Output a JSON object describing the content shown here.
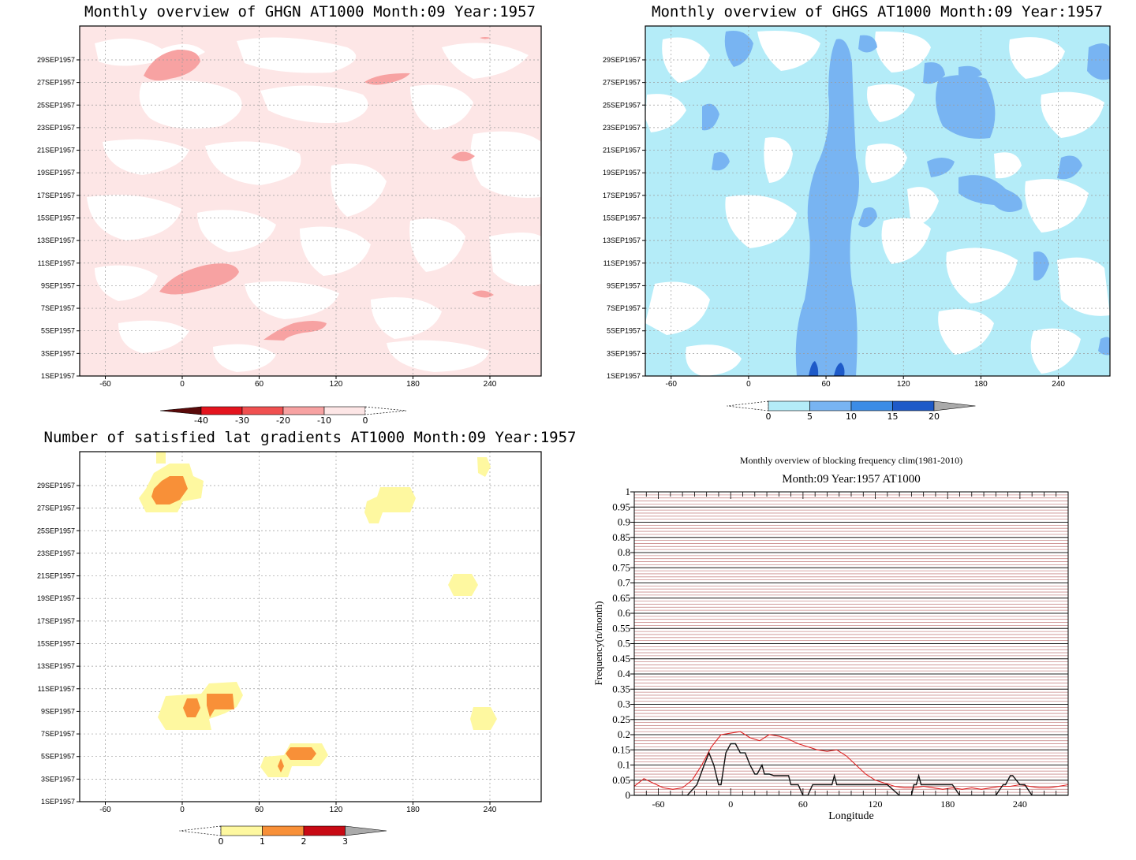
{
  "chart_data": [
    {
      "type": "heatmap",
      "title": "Monthly overview of GHGN AT1000 Month:09 Year:1957",
      "x_ticks": [
        -60,
        0,
        60,
        120,
        180,
        240
      ],
      "xlim": [
        -80,
        280
      ],
      "y_ticks": [
        "1SEP1957",
        "3SEP1957",
        "5SEP1957",
        "7SEP1957",
        "9SEP1957",
        "11SEP1957",
        "13SEP1957",
        "15SEP1957",
        "17SEP1957",
        "19SEP1957",
        "21SEP1957",
        "23SEP1957",
        "25SEP1957",
        "27SEP1957",
        "29SEP1957"
      ],
      "colorbar": {
        "ticks": [
          -40,
          -30,
          -20,
          -10,
          0
        ],
        "colors": [
          "#5a0a0a",
          "#e4141e",
          "#f05050",
          "#f7a2a2",
          "#fde6e6"
        ],
        "over_color": "#ffffff"
      },
      "background_color": "#fde6e6",
      "grid": true
    },
    {
      "type": "heatmap",
      "title": "Monthly overview of GHGS AT1000 Month:09 Year:1957",
      "x_ticks": [
        -60,
        0,
        60,
        120,
        180,
        240
      ],
      "xlim": [
        -80,
        280
      ],
      "y_ticks": [
        "1SEP1957",
        "3SEP1957",
        "5SEP1957",
        "7SEP1957",
        "9SEP1957",
        "11SEP1957",
        "13SEP1957",
        "15SEP1957",
        "17SEP1957",
        "19SEP1957",
        "21SEP1957",
        "23SEP1957",
        "25SEP1957",
        "27SEP1957",
        "29SEP1957"
      ],
      "colorbar": {
        "ticks": [
          0,
          5,
          10,
          15,
          20
        ],
        "colors": [
          "#b4ecf8",
          "#78b4f2",
          "#3c8ce6",
          "#1e5ac8"
        ],
        "over_color": "#aaaaaa",
        "under_color": "#ffffff"
      },
      "background_color": "#b4ecf8",
      "grid": true
    },
    {
      "type": "heatmap",
      "title": "Number of satisfied lat gradients AT1000 Month:09 Year:1957",
      "x_ticks": [
        -60,
        0,
        60,
        120,
        180,
        240
      ],
      "xlim": [
        -80,
        280
      ],
      "y_ticks": [
        "1SEP1957",
        "3SEP1957",
        "5SEP1957",
        "7SEP1957",
        "9SEP1957",
        "11SEP1957",
        "13SEP1957",
        "15SEP1957",
        "17SEP1957",
        "19SEP1957",
        "21SEP1957",
        "23SEP1957",
        "25SEP1957",
        "27SEP1957",
        "29SEP1957"
      ],
      "colorbar": {
        "ticks": [
          0,
          1,
          2,
          3
        ],
        "colors": [
          "#fef8a0",
          "#f89038",
          "#c80a14"
        ],
        "over_color": "#aaaaaa",
        "under_color": "#ffffff"
      },
      "grid": true
    },
    {
      "type": "line",
      "title": "Monthly overview of blocking frequency clim(1981-2010)",
      "subtitle": "Month:09 Year:1957  AT1000",
      "xlabel": "Longitude",
      "ylabel": "Frequency(n/month)",
      "xlim": [
        -80,
        280
      ],
      "ylim": [
        0,
        1
      ],
      "x_ticks": [
        -60,
        0,
        60,
        120,
        180,
        240
      ],
      "y_ticks": [
        "0",
        "0.05",
        "0.1",
        "0.15",
        "0.2",
        "0.25",
        "0.3",
        "0.35",
        "0.4",
        "0.45",
        "0.5",
        "0.55",
        "0.6",
        "0.65",
        "0.7",
        "0.75",
        "0.8",
        "0.85",
        "0.9",
        "0.95",
        "1"
      ],
      "series": [
        {
          "color": "#e02020",
          "x": [
            -80,
            -72,
            -64,
            -56,
            -48,
            -40,
            -32,
            -24,
            -16,
            -8,
            0,
            8,
            16,
            24,
            32,
            40,
            48,
            56,
            64,
            72,
            80,
            88,
            96,
            104,
            112,
            120,
            128,
            136,
            144,
            152,
            160,
            168,
            176,
            184,
            192,
            200,
            208,
            216,
            224,
            232,
            240,
            248,
            256,
            264,
            272,
            280
          ],
          "y": [
            0.03,
            0.055,
            0.04,
            0.025,
            0.02,
            0.025,
            0.05,
            0.1,
            0.16,
            0.2,
            0.205,
            0.21,
            0.19,
            0.18,
            0.2,
            0.195,
            0.185,
            0.17,
            0.16,
            0.15,
            0.145,
            0.15,
            0.13,
            0.1,
            0.07,
            0.05,
            0.04,
            0.03,
            0.025,
            0.025,
            0.03,
            0.025,
            0.02,
            0.025,
            0.02,
            0.025,
            0.02,
            0.025,
            0.03,
            0.03,
            0.035,
            0.03,
            0.025,
            0.025,
            0.03,
            0.035
          ]
        },
        {
          "color": "#111111",
          "x": [
            -80,
            -60,
            -40,
            -36,
            -28,
            -22,
            -18,
            -14,
            -10,
            -8,
            -4,
            0,
            4,
            8,
            12,
            16,
            20,
            22,
            26,
            28,
            32,
            36,
            40,
            44,
            48,
            50,
            52,
            56,
            60,
            64,
            68,
            72,
            76,
            80,
            82,
            84,
            86,
            88,
            90,
            92,
            100,
            108,
            112,
            116,
            120,
            124,
            130,
            140,
            150,
            152,
            154,
            156,
            158,
            160,
            170,
            180,
            184,
            190,
            200,
            210,
            220,
            226,
            228,
            232,
            234,
            240,
            244,
            250,
            260,
            270,
            280
          ],
          "y": [
            0,
            0,
            0,
            0,
            0.035,
            0.1,
            0.14,
            0.1,
            0.035,
            0.035,
            0.14,
            0.17,
            0.17,
            0.14,
            0.14,
            0.1,
            0.07,
            0.07,
            0.1,
            0.07,
            0.07,
            0.065,
            0.065,
            0.065,
            0.065,
            0.035,
            0.035,
            0.035,
            0,
            0,
            0.035,
            0.035,
            0.035,
            0.035,
            0.035,
            0.035,
            0.065,
            0.035,
            0.035,
            0.035,
            0.035,
            0.035,
            0.035,
            0.035,
            0.035,
            0.035,
            0.035,
            0,
            0,
            0.035,
            0.035,
            0.065,
            0.035,
            0.035,
            0.035,
            0.035,
            0.035,
            0,
            0,
            0,
            0,
            0.035,
            0.035,
            0.065,
            0.065,
            0.035,
            0.035,
            0,
            0,
            0,
            0
          ]
        }
      ],
      "grid": true
    }
  ]
}
